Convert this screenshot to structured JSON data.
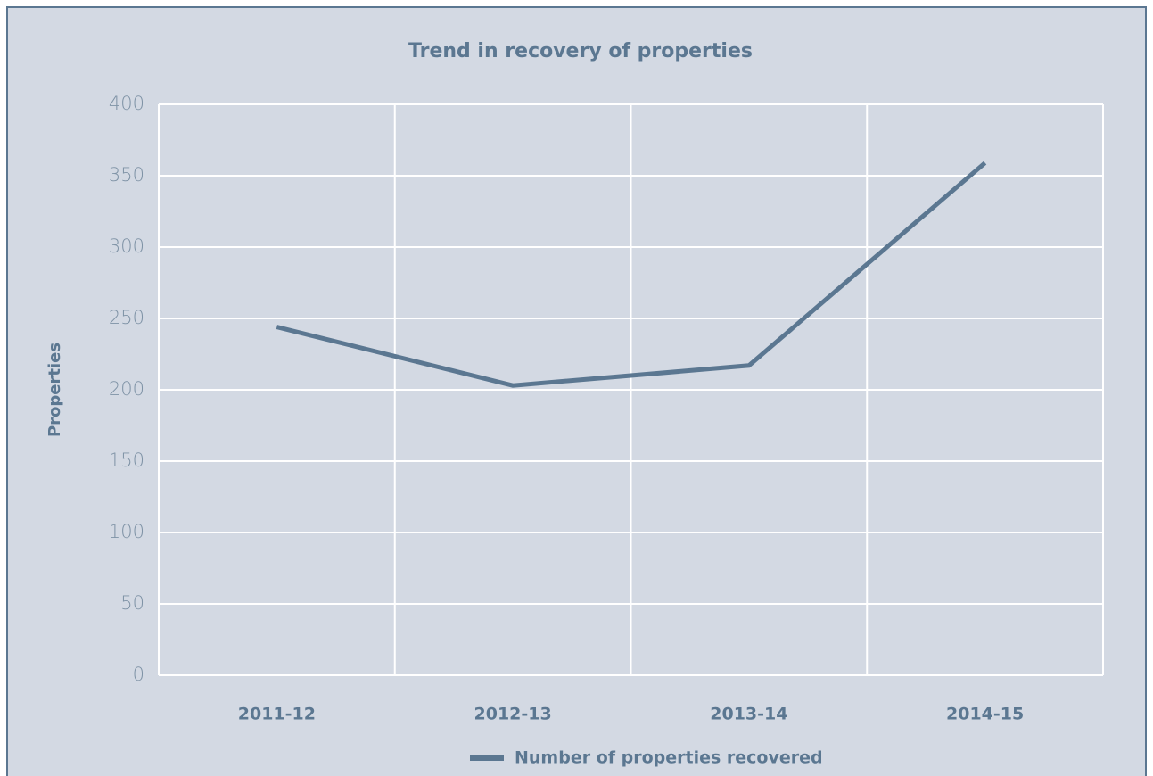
{
  "chart_data": {
    "type": "line",
    "title": "Trend in recovery of properties",
    "y_label": "Properties",
    "categories": [
      "2011-12",
      "2012-13",
      "2013-14",
      "2014-15"
    ],
    "series": [
      {
        "name": "Number of properties recovered",
        "color": "#5b7791",
        "values": [
          244,
          203,
          217,
          359
        ]
      }
    ],
    "ylim": [
      0,
      400
    ],
    "yticks": [
      0,
      50,
      100,
      150,
      200,
      250,
      300,
      350,
      400
    ],
    "grid": true,
    "legend": "bottom"
  }
}
